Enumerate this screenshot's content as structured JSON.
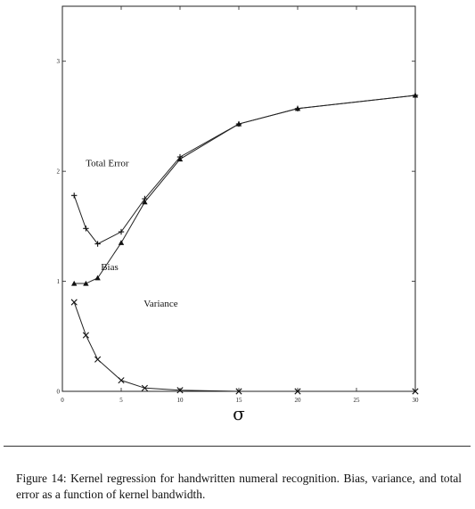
{
  "chart_data": {
    "type": "line",
    "xlabel": "σ",
    "ylabel": "",
    "xlim": [
      0,
      30
    ],
    "ylim": [
      0,
      3.5
    ],
    "x_ticks": [
      0,
      5,
      10,
      15,
      20,
      25,
      30
    ],
    "y_ticks": [
      0,
      1,
      2,
      3
    ],
    "grid": false,
    "series": [
      {
        "name": "Total Error",
        "marker": "plus",
        "x": [
          1,
          2,
          3,
          5,
          7,
          10,
          15,
          20,
          30
        ],
        "y": [
          1.78,
          1.48,
          1.34,
          1.45,
          1.75,
          2.13,
          2.43,
          2.57,
          2.69
        ]
      },
      {
        "name": "Bias",
        "marker": "triangle",
        "x": [
          1,
          2,
          3,
          5,
          7,
          10,
          15,
          20,
          30
        ],
        "y": [
          0.98,
          0.98,
          1.03,
          1.35,
          1.72,
          2.11,
          2.43,
          2.57,
          2.69
        ]
      },
      {
        "name": "Variance",
        "marker": "cross",
        "x": [
          1,
          2,
          3,
          5,
          7,
          10,
          15,
          20,
          30
        ],
        "y": [
          0.81,
          0.51,
          0.29,
          0.1,
          0.03,
          0.01,
          0.0,
          0.0,
          0.0
        ]
      }
    ]
  },
  "caption": "Figure 14: Kernel regression for handwritten numeral recognition. Bias, variance, and total error as a function of kernel bandwidth."
}
